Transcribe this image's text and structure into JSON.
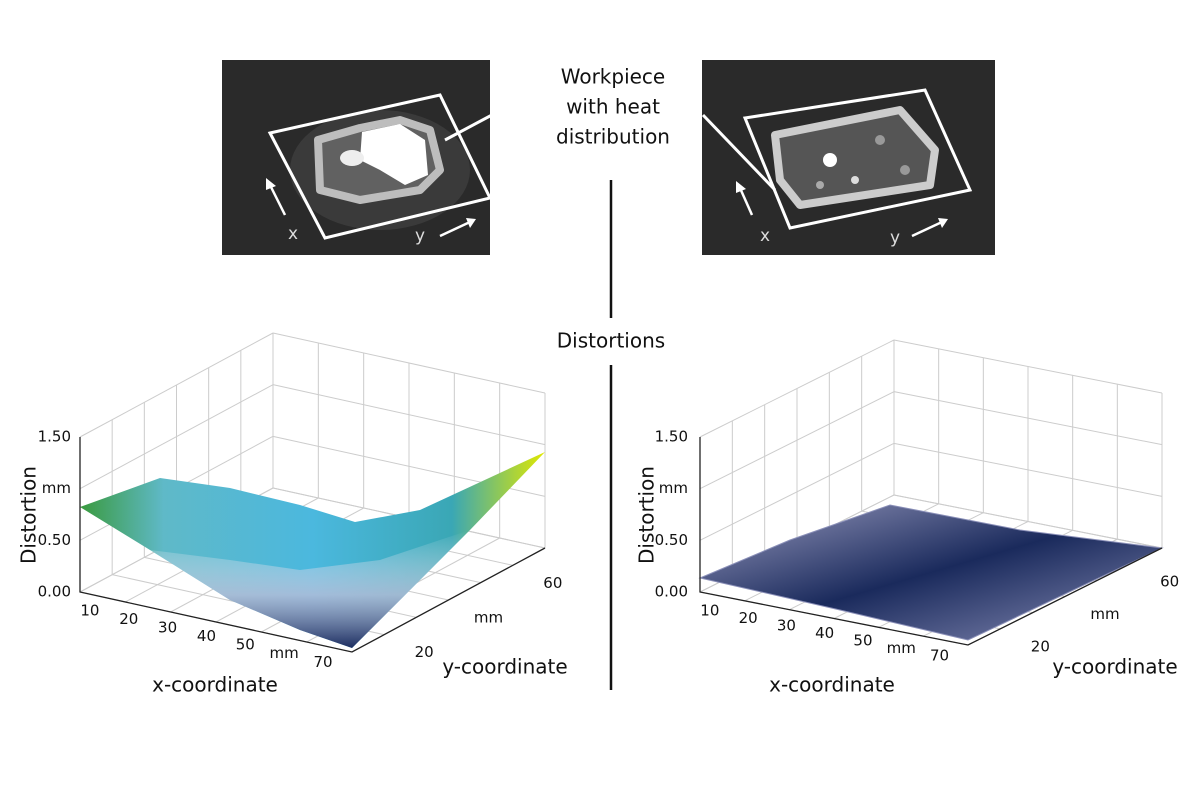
{
  "caption": {
    "lines": [
      "Workpiece",
      "with heat",
      "distribution"
    ]
  },
  "section_label": "Distortions",
  "images": [
    {
      "x_arrow": "x",
      "y_arrow": "y"
    },
    {
      "x_arrow": "x",
      "y_arrow": "y"
    }
  ],
  "plots": [
    {
      "z_label": "Distortion",
      "z_ticks": [
        "1.50",
        "mm",
        "0.50",
        "0.00"
      ],
      "x_label": "x-coordinate",
      "x_ticks": [
        "10",
        "20",
        "30",
        "40",
        "50",
        "mm",
        "70"
      ],
      "y_label": "y-coordinate",
      "y_ticks": [
        "20",
        "mm",
        "60"
      ]
    },
    {
      "z_label": "Distortion",
      "z_ticks": [
        "1.50",
        "mm",
        "0.50",
        "0.00"
      ],
      "x_label": "x-coordinate",
      "x_ticks": [
        "10",
        "20",
        "30",
        "40",
        "50",
        "mm",
        "70"
      ],
      "y_label": "y-coordinate",
      "y_ticks": [
        "20",
        "mm",
        "60"
      ]
    }
  ]
}
